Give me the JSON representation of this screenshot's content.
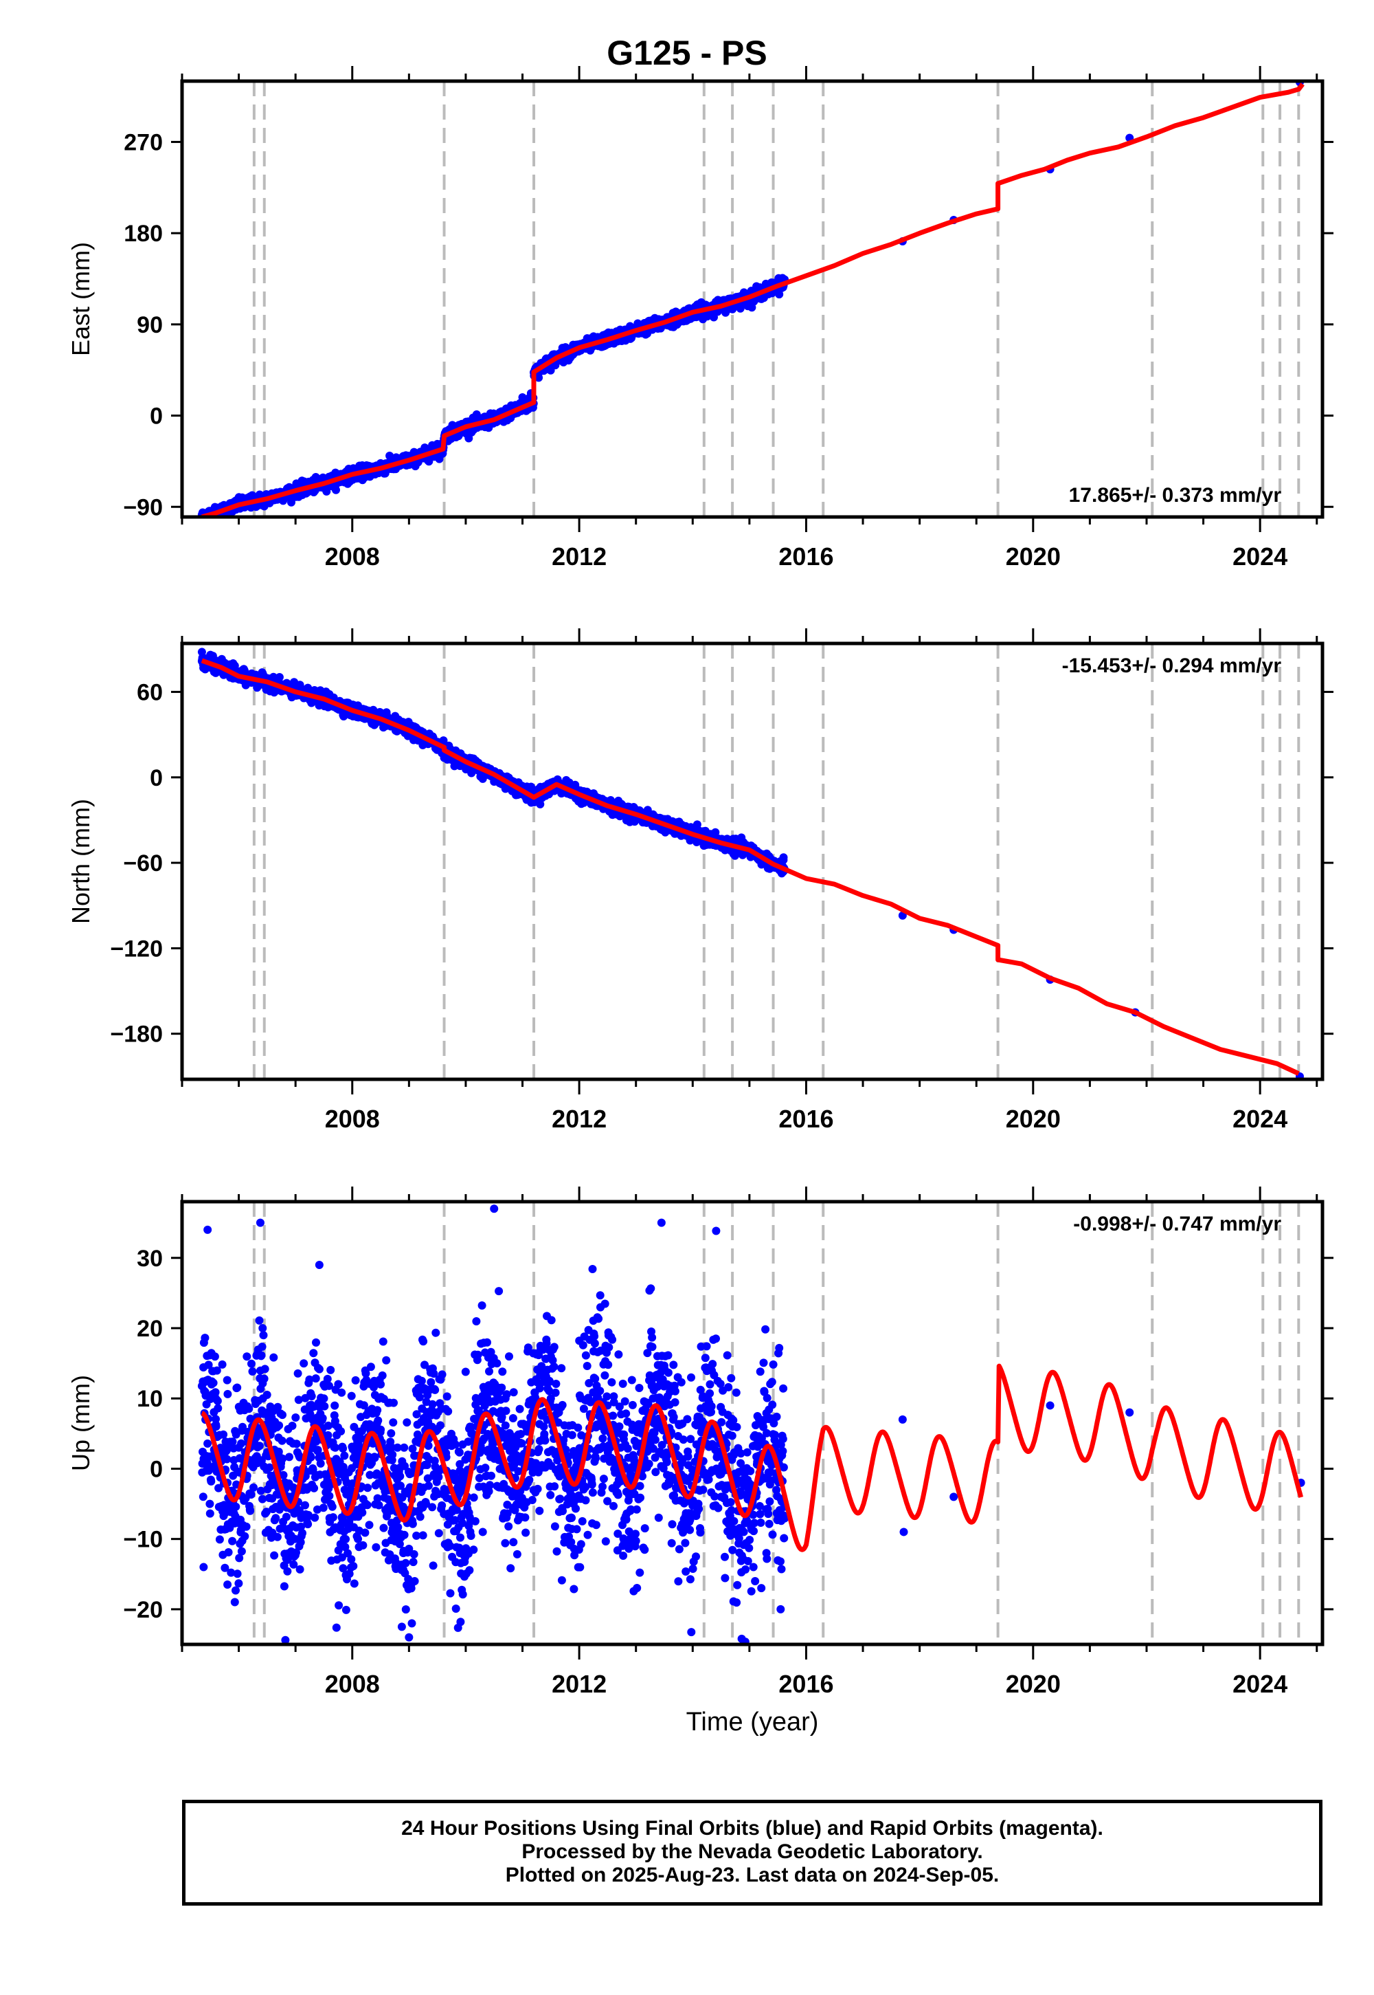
{
  "title": "G125 - PS",
  "footer": {
    "line1": "24 Hour Positions Using Final Orbits (blue) and Rapid Orbits (magenta).",
    "line2": "Processed by the Nevada Geodetic Laboratory.",
    "line3": "Plotted on 2025-Aug-23. Last data on 2024-Sep-05."
  },
  "colors": {
    "data": "#0000ff",
    "model": "#ff0000",
    "steps": "#bbbbbb"
  },
  "chart_data": [
    {
      "type": "scatter",
      "ylabel": "East (mm)",
      "xlabel": "",
      "xlim": [
        2005.0,
        2025.1
      ],
      "ylim": [
        -100,
        330
      ],
      "yticks": [
        -90,
        0,
        90,
        180,
        270
      ],
      "xticks": [
        2008,
        2012,
        2016,
        2020,
        2024
      ],
      "rate_label": "17.865+/- 0.373 mm/yr",
      "rate_position": "bottom-right",
      "step_dates": [
        2006.27,
        2006.45,
        2009.62,
        2011.2,
        2014.2,
        2014.7,
        2015.42,
        2016.3,
        2019.38,
        2022.1,
        2024.05,
        2024.35,
        2024.68
      ],
      "series": [
        {
          "role": "model",
          "kind": "line",
          "x": [
            2005.35,
            2005.6,
            2006.0,
            2006.5,
            2007.0,
            2007.5,
            2008.0,
            2008.5,
            2009.0,
            2009.6,
            2009.62,
            2010.0,
            2010.5,
            2011.2,
            2011.2,
            2011.6,
            2012.0,
            2012.5,
            2013.0,
            2013.5,
            2014.0,
            2014.5,
            2015.0,
            2015.5,
            2016.0,
            2016.5,
            2017.0,
            2017.5,
            2018.0,
            2018.5,
            2019.0,
            2019.38,
            2019.38,
            2019.8,
            2020.2,
            2020.6,
            2021.0,
            2021.5,
            2022.0,
            2022.5,
            2023.0,
            2023.5,
            2024.0,
            2024.5,
            2024.68,
            2024.75
          ],
          "y": [
            -100,
            -96,
            -88,
            -82,
            -74,
            -67,
            -58,
            -52,
            -44,
            -33,
            -20,
            -11,
            -4,
            13,
            43,
            57,
            67,
            75,
            84,
            92,
            102,
            108,
            117,
            128,
            138,
            148,
            160,
            169,
            180,
            190,
            199,
            204,
            229,
            237,
            243,
            252,
            259,
            265,
            275,
            286,
            294,
            304,
            314,
            319,
            322,
            327
          ]
        },
        {
          "role": "data",
          "kind": "points",
          "x": [
            2005.35,
            2005.5,
            2005.7,
            2005.9,
            2006.1,
            2006.3,
            2006.5,
            2006.7,
            2006.9,
            2007.1,
            2007.3,
            2007.5,
            2007.7,
            2007.9,
            2008.1,
            2008.3,
            2008.5,
            2008.7,
            2008.9,
            2009.1,
            2009.3,
            2009.5,
            2009.65,
            2009.8,
            2010.0,
            2010.2,
            2010.4,
            2010.6,
            2010.8,
            2011.0,
            2011.15,
            2011.25,
            2011.4,
            2011.6,
            2011.8,
            2012.0,
            2012.2,
            2012.4,
            2012.6,
            2012.8,
            2013.0,
            2013.2,
            2013.4,
            2013.6,
            2013.8,
            2014.0,
            2014.2,
            2014.4,
            2014.6,
            2014.8,
            2015.0,
            2015.2,
            2015.4,
            2015.6,
            2017.7,
            2018.6,
            2020.3,
            2021.7,
            2024.7
          ],
          "y": [
            -98,
            -96,
            -94,
            -91,
            -86,
            -84,
            -80,
            -76,
            -72,
            -71,
            -66,
            -63,
            -60,
            -55,
            -53,
            -51,
            -47,
            -43,
            -40,
            -37,
            -34,
            -28,
            -22,
            -16,
            -10,
            -12,
            -5,
            2,
            10,
            18,
            22,
            44,
            49,
            56,
            62,
            67,
            71,
            74,
            77,
            82,
            85,
            88,
            91,
            93,
            97,
            102,
            104,
            107,
            111,
            114,
            118,
            124,
            127,
            133,
            172,
            193,
            243,
            274,
            329
          ]
        }
      ]
    },
    {
      "type": "scatter",
      "ylabel": "North (mm)",
      "xlabel": "",
      "xlim": [
        2005.0,
        2025.1
      ],
      "ylim": [
        -212,
        94
      ],
      "yticks": [
        -180,
        -120,
        -60,
        0,
        60
      ],
      "xticks": [
        2008,
        2012,
        2016,
        2020,
        2024
      ],
      "rate_label": "-15.453+/- 0.294 mm/yr",
      "rate_position": "top-right",
      "step_dates": [
        2006.27,
        2006.45,
        2009.62,
        2011.2,
        2014.2,
        2014.7,
        2015.42,
        2016.3,
        2019.38,
        2022.1,
        2024.05,
        2024.35,
        2024.68
      ],
      "series": [
        {
          "role": "model",
          "kind": "line",
          "x": [
            2005.35,
            2005.7,
            2006.0,
            2006.5,
            2007.0,
            2007.5,
            2008.0,
            2008.5,
            2009.0,
            2009.62,
            2009.62,
            2010.0,
            2010.5,
            2011.2,
            2011.6,
            2012.0,
            2012.5,
            2013.0,
            2013.5,
            2014.0,
            2014.5,
            2015.0,
            2015.42,
            2016.0,
            2016.5,
            2017.0,
            2017.5,
            2018.0,
            2018.5,
            2019.0,
            2019.38,
            2019.38,
            2019.8,
            2020.3,
            2020.8,
            2021.3,
            2021.8,
            2022.3,
            2022.8,
            2023.3,
            2023.8,
            2024.3,
            2024.68
          ],
          "y": [
            82,
            77,
            71,
            67,
            60,
            55,
            47,
            41,
            33,
            21,
            19,
            11,
            2,
            -14,
            -5,
            -12,
            -20,
            -26,
            -33,
            -40,
            -46,
            -51,
            -61,
            -71,
            -75,
            -83,
            -89,
            -99,
            -104,
            -112,
            -118,
            -128,
            -131,
            -141,
            -148,
            -159,
            -165,
            -175,
            -183,
            -191,
            -196,
            -201,
            -208
          ]
        },
        {
          "role": "data",
          "kind": "points",
          "x": [
            2005.35,
            2005.5,
            2005.7,
            2005.9,
            2006.1,
            2006.3,
            2006.5,
            2006.7,
            2006.9,
            2007.1,
            2007.3,
            2007.5,
            2007.7,
            2007.9,
            2008.1,
            2008.3,
            2008.5,
            2008.7,
            2008.9,
            2009.1,
            2009.3,
            2009.5,
            2009.7,
            2009.9,
            2010.1,
            2010.3,
            2010.5,
            2010.7,
            2010.9,
            2011.1,
            2011.3,
            2011.5,
            2011.7,
            2011.9,
            2012.1,
            2012.3,
            2012.5,
            2012.7,
            2012.9,
            2013.1,
            2013.3,
            2013.5,
            2013.7,
            2013.9,
            2014.1,
            2014.3,
            2014.5,
            2014.7,
            2014.9,
            2015.1,
            2015.3,
            2015.6,
            2017.7,
            2018.6,
            2020.3,
            2021.8,
            2024.7
          ],
          "y": [
            88,
            86,
            83,
            80,
            75,
            72,
            69,
            66,
            62,
            59,
            56,
            53,
            50,
            47,
            44,
            42,
            39,
            36,
            33,
            30,
            27,
            22,
            17,
            8,
            3,
            -1,
            -3,
            -8,
            -11,
            -14,
            -9,
            -5,
            -8,
            -11,
            -14,
            -17,
            -21,
            -22,
            -25,
            -27,
            -30,
            -32,
            -35,
            -37,
            -41,
            -43,
            -44,
            -46,
            -50,
            -52,
            -56,
            -58,
            -97,
            -107,
            -142,
            -165,
            -210
          ]
        }
      ]
    },
    {
      "type": "scatter",
      "ylabel": "Up (mm)",
      "xlabel": "Time (year)",
      "xlim": [
        2005.0,
        2025.1
      ],
      "ylim": [
        -25,
        38
      ],
      "yticks": [
        -20,
        -10,
        0,
        10,
        20,
        30
      ],
      "xticks": [
        2008,
        2012,
        2016,
        2020,
        2024
      ],
      "rate_label": "-0.998+/- 0.747 mm/yr",
      "rate_position": "top-right",
      "step_dates": [
        2006.27,
        2006.45,
        2009.62,
        2011.2,
        2014.2,
        2014.7,
        2015.42,
        2016.3,
        2019.38,
        2022.1,
        2024.05,
        2024.35,
        2024.68
      ],
      "model_curve": {
        "x_start": 2005.35,
        "x_end": 2024.72,
        "annual_amplitude": 5.8,
        "annual_phase_year": 0.13,
        "semiannual_amplitude": 0.6,
        "trend_knots_x": [
          2005.35,
          2009.0,
          2011.2,
          2013.5,
          2015.0,
          2016.0,
          2016.3,
          2019.38,
          2019.4,
          2021.0,
          2022.1,
          2022.2,
          2024.0,
          2024.72
        ],
        "trend_knots_y": [
          2.0,
          -1.5,
          4.0,
          3.0,
          -1.0,
          -6.0,
          0.0,
          -2.0,
          9.0,
          7.0,
          4.0,
          3.0,
          0.0,
          -1.5
        ]
      },
      "series": [
        {
          "role": "data",
          "kind": "points",
          "x": [
            2005.38,
            2005.45,
            2005.52,
            2005.6,
            2005.8,
            2006.0,
            2006.2,
            2006.38,
            2006.42,
            2006.5,
            2006.7,
            2006.9,
            2007.1,
            2007.3,
            2007.42,
            2007.5,
            2007.7,
            2007.9,
            2008.1,
            2008.3,
            2008.5,
            2008.7,
            2008.9,
            2009.0,
            2009.05,
            2009.1,
            2009.3,
            2009.5,
            2009.7,
            2009.9,
            2010.1,
            2010.3,
            2010.5,
            2010.55,
            2010.7,
            2010.9,
            2011.1,
            2011.3,
            2011.5,
            2011.7,
            2011.9,
            2012.1,
            2012.3,
            2012.5,
            2012.7,
            2012.9,
            2013.1,
            2013.3,
            2013.45,
            2013.55,
            2013.7,
            2013.9,
            2014.1,
            2014.3,
            2014.5,
            2014.7,
            2014.9,
            2015.1,
            2015.3,
            2015.55,
            2017.7,
            2017.72,
            2018.6,
            2020.3,
            2021.7,
            2024.72
          ],
          "y": [
            -14,
            34,
            12,
            6,
            -2,
            3,
            -6,
            35,
            20,
            8,
            2,
            -4,
            -7,
            4,
            29,
            10,
            3,
            -6,
            -10,
            -8,
            12,
            3,
            -12,
            -24,
            -22,
            -16,
            -5,
            8,
            -3,
            -12,
            5,
            -9,
            37,
            15,
            10,
            -4,
            6,
            -6,
            10,
            4,
            -5,
            2,
            -8,
            9,
            3,
            -6,
            5,
            10,
            35,
            12,
            3,
            -7,
            -5,
            8,
            -4,
            6,
            -9,
            -16,
            -12,
            -20,
            7,
            -9,
            -4,
            9,
            8,
            -2
          ]
        }
      ]
    }
  ]
}
